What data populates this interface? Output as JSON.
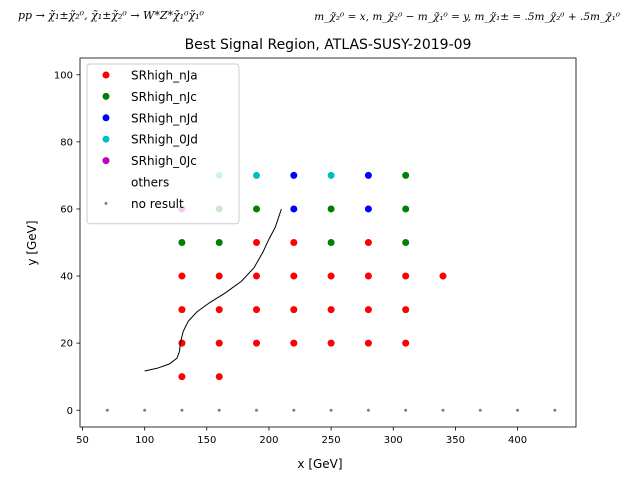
{
  "header": {
    "process": "pp → χ̃₁±χ̃₂⁰, χ̃₁±χ̃₂⁰ → W*Z*χ̃₁⁰χ̃₁⁰",
    "masses": "m_χ̃₂⁰ = x, m_χ̃₂⁰ − m_χ̃₁⁰ = y, m_χ̃₁± = .5m_χ̃₂⁰ + .5m_χ̃₁⁰"
  },
  "chart_data": {
    "type": "scatter",
    "title": "Best Signal Region, ATLAS-SUSY-2019-09",
    "xlabel": "x [GeV]",
    "ylabel": "y [GeV]",
    "xlim": [
      48,
      447
    ],
    "ylim": [
      -5,
      105
    ],
    "xticks": [
      50,
      100,
      150,
      200,
      250,
      300,
      350,
      400
    ],
    "yticks": [
      0,
      20,
      40,
      60,
      80,
      100
    ],
    "grid": false,
    "legend_position": "top-left",
    "series": [
      {
        "name": "SRhigh_nJa",
        "color": "#ff0000",
        "marker": "dot",
        "points": [
          [
            130,
            10
          ],
          [
            160,
            10
          ],
          [
            130,
            20
          ],
          [
            160,
            20
          ],
          [
            190,
            20
          ],
          [
            220,
            20
          ],
          [
            250,
            20
          ],
          [
            280,
            20
          ],
          [
            310,
            20
          ],
          [
            130,
            30
          ],
          [
            160,
            30
          ],
          [
            190,
            30
          ],
          [
            220,
            30
          ],
          [
            250,
            30
          ],
          [
            280,
            30
          ],
          [
            310,
            30
          ],
          [
            130,
            40
          ],
          [
            160,
            40
          ],
          [
            190,
            40
          ],
          [
            220,
            40
          ],
          [
            250,
            40
          ],
          [
            280,
            40
          ],
          [
            310,
            40
          ],
          [
            340,
            40
          ],
          [
            190,
            50
          ],
          [
            220,
            50
          ],
          [
            280,
            50
          ]
        ]
      },
      {
        "name": "SRhigh_nJc",
        "color": "#008000",
        "marker": "dot",
        "points": [
          [
            130,
            50
          ],
          [
            160,
            50
          ],
          [
            250,
            50
          ],
          [
            310,
            50
          ],
          [
            160,
            60
          ],
          [
            190,
            60
          ],
          [
            250,
            60
          ],
          [
            310,
            60
          ],
          [
            310,
            70
          ]
        ]
      },
      {
        "name": "SRhigh_nJd",
        "color": "#0000ff",
        "marker": "dot",
        "points": [
          [
            220,
            60
          ],
          [
            280,
            60
          ],
          [
            220,
            70
          ],
          [
            280,
            70
          ]
        ]
      },
      {
        "name": "SRhigh_0Jd",
        "color": "#00bfbf",
        "marker": "dot",
        "points": [
          [
            160,
            70
          ],
          [
            190,
            70
          ],
          [
            250,
            70
          ]
        ]
      },
      {
        "name": "SRhigh_0Jc",
        "color": "#bf00bf",
        "marker": "dot",
        "points": [
          [
            130,
            60
          ]
        ]
      },
      {
        "name": "others",
        "color": "#ffffff",
        "marker": "none",
        "points": []
      },
      {
        "name": "no result",
        "color": "#808080",
        "marker": "small",
        "points": [
          [
            70,
            0
          ],
          [
            100,
            0
          ],
          [
            130,
            0
          ],
          [
            160,
            0
          ],
          [
            190,
            0
          ],
          [
            220,
            0
          ],
          [
            250,
            0
          ],
          [
            280,
            0
          ],
          [
            310,
            0
          ],
          [
            340,
            0
          ],
          [
            370,
            0
          ],
          [
            400,
            0
          ],
          [
            430,
            0
          ]
        ]
      }
    ],
    "exclusion_curve": {
      "color": "#000000",
      "points": [
        [
          100,
          11.7
        ],
        [
          110,
          12.5
        ],
        [
          120,
          13.8
        ],
        [
          126,
          15.5
        ],
        [
          128,
          17.5
        ],
        [
          129,
          20.5
        ],
        [
          131,
          23.5
        ],
        [
          135,
          26.5
        ],
        [
          142,
          29.3
        ],
        [
          152,
          32
        ],
        [
          165,
          35
        ],
        [
          178,
          38.5
        ],
        [
          188,
          42.5
        ],
        [
          195,
          47
        ],
        [
          200,
          51
        ],
        [
          205,
          54.5
        ],
        [
          210,
          60
        ]
      ]
    }
  }
}
